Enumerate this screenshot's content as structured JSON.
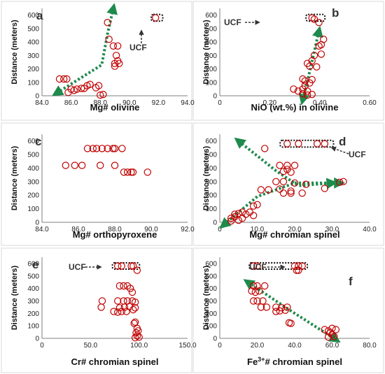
{
  "colors": {
    "marker": "#c00000",
    "trend": "#1e8a4c",
    "frame": "#d9d9d9",
    "axis": "#7f7f7f"
  },
  "chart_data": [
    {
      "id": "a",
      "type": "scatter",
      "panel_label": "a",
      "xlabel": "Mg# olivine",
      "ylabel": "Distance (meters)",
      "xlim": [
        84,
        94
      ],
      "ylim": [
        0,
        650
      ],
      "xticks": [
        "84.0",
        "86.0",
        "88.0",
        "90.0",
        "92.0",
        "94.0"
      ],
      "yticks": [
        "0",
        "100",
        "200",
        "300",
        "400",
        "500",
        "600"
      ],
      "ucf_label": "UCF",
      "points": [
        [
          85.2,
          125
        ],
        [
          85.5,
          125
        ],
        [
          85.7,
          125
        ],
        [
          85.8,
          25
        ],
        [
          86.0,
          50
        ],
        [
          86.2,
          40
        ],
        [
          86.4,
          50
        ],
        [
          86.7,
          55
        ],
        [
          86.9,
          55
        ],
        [
          87.1,
          75
        ],
        [
          87.3,
          85
        ],
        [
          87.7,
          60
        ],
        [
          87.9,
          75
        ],
        [
          88.0,
          5
        ],
        [
          88.2,
          10
        ],
        [
          88.5,
          545
        ],
        [
          88.6,
          420
        ],
        [
          88.9,
          370
        ],
        [
          89.0,
          240
        ],
        [
          89.1,
          300
        ],
        [
          89.2,
          260
        ],
        [
          89.3,
          240
        ],
        [
          89.0,
          220
        ],
        [
          89.2,
          370
        ],
        [
          91.8,
          580
        ]
      ],
      "trend_lines": [
        [
          [
            85.0,
            20
          ],
          [
            88.1,
            230
          ],
          [
            88.5,
            460
          ],
          [
            88.9,
            650
          ]
        ]
      ],
      "ucf_box": [
        91.6,
        92.2,
        555,
        605
      ]
    },
    {
      "id": "b",
      "type": "scatter",
      "panel_label": "b",
      "xlabel": "NiO (wt.%) in olivine",
      "ylabel": "Distance (meters)",
      "xlim": [
        0,
        0.65
      ],
      "ylim": [
        0,
        650
      ],
      "xticks": [
        "0",
        "0.20",
        "0.40",
        "0.60"
      ],
      "yticks": [
        "0",
        "100",
        "200",
        "300",
        "400",
        "500",
        "600"
      ],
      "ucf_label": "UCF",
      "points": [
        [
          0.4,
          580
        ],
        [
          0.41,
          570
        ],
        [
          0.43,
          545
        ],
        [
          0.45,
          420
        ],
        [
          0.44,
          380
        ],
        [
          0.43,
          370
        ],
        [
          0.41,
          300
        ],
        [
          0.4,
          260
        ],
        [
          0.38,
          240
        ],
        [
          0.39,
          220
        ],
        [
          0.42,
          215
        ],
        [
          0.4,
          120
        ],
        [
          0.39,
          95
        ],
        [
          0.37,
          75
        ],
        [
          0.36,
          50
        ],
        [
          0.38,
          35
        ],
        [
          0.32,
          50
        ],
        [
          0.34,
          35
        ],
        [
          0.36,
          15
        ],
        [
          0.4,
          10
        ],
        [
          0.38,
          5
        ],
        [
          0.36,
          125
        ],
        [
          0.37,
          110
        ],
        [
          0.44,
          310
        ]
      ],
      "trend_lines": [
        [
          [
            0.43,
            480
          ],
          [
            0.39,
            180
          ],
          [
            0.36,
            -30
          ]
        ]
      ],
      "ucf_box": [
        0.38,
        0.45,
        555,
        605
      ]
    },
    {
      "id": "c",
      "type": "scatter",
      "panel_label": "c",
      "xlabel": "Mg# orthopyroxene",
      "ylabel": "Distance (meters)",
      "xlim": [
        84,
        92
      ],
      "ylim": [
        0,
        650
      ],
      "xticks": [
        "84.0",
        "86.0",
        "88.0",
        "90.0",
        "92.0"
      ],
      "yticks": [
        "0",
        "100",
        "200",
        "300",
        "400",
        "500",
        "600"
      ],
      "points": [
        [
          86.5,
          545
        ],
        [
          86.8,
          545
        ],
        [
          87.0,
          545
        ],
        [
          87.3,
          545
        ],
        [
          87.6,
          545
        ],
        [
          88.0,
          545
        ],
        [
          88.4,
          545
        ],
        [
          87.9,
          545
        ],
        [
          85.3,
          420
        ],
        [
          85.8,
          420
        ],
        [
          86.2,
          420
        ],
        [
          87.2,
          420
        ],
        [
          88.0,
          420
        ],
        [
          88.5,
          370
        ],
        [
          88.7,
          370
        ],
        [
          88.9,
          370
        ],
        [
          89.0,
          370
        ],
        [
          89.8,
          370
        ]
      ]
    },
    {
      "id": "d",
      "type": "scatter",
      "panel_label": "d",
      "xlabel": "Mg# chromian spinel",
      "ylabel": "Distance (meters)",
      "xlim": [
        0,
        40
      ],
      "ylim": [
        0,
        650
      ],
      "xticks": [
        "0",
        "10.0",
        "20.0",
        "30.0",
        "40.0"
      ],
      "yticks": [
        "0",
        "100",
        "200",
        "300",
        "400",
        "500",
        "600"
      ],
      "ucf_label": "UCF",
      "points": [
        [
          18,
          580
        ],
        [
          21,
          580
        ],
        [
          26,
          580
        ],
        [
          28,
          580
        ],
        [
          12,
          545
        ],
        [
          16,
          420
        ],
        [
          18,
          420
        ],
        [
          20,
          420
        ],
        [
          17,
          375
        ],
        [
          18,
          390
        ],
        [
          19,
          370
        ],
        [
          15,
          300
        ],
        [
          17,
          300
        ],
        [
          20,
          290
        ],
        [
          23,
          280
        ],
        [
          28,
          250
        ],
        [
          32,
          295
        ],
        [
          33,
          300
        ],
        [
          16,
          245
        ],
        [
          19,
          230
        ],
        [
          11,
          240
        ],
        [
          13,
          240
        ],
        [
          17,
          215
        ],
        [
          19,
          215
        ],
        [
          22,
          215
        ],
        [
          10,
          130
        ],
        [
          9,
          120
        ],
        [
          8,
          75
        ],
        [
          7,
          60
        ],
        [
          6,
          75
        ],
        [
          5,
          65
        ],
        [
          4,
          40
        ],
        [
          3,
          30
        ],
        [
          4,
          60
        ],
        [
          6,
          30
        ],
        [
          9,
          50
        ],
        [
          5,
          15
        ],
        [
          3,
          10
        ]
      ],
      "trend_lines": [
        [
          [
            1,
            -20
          ],
          [
            10,
            190
          ],
          [
            20,
            290
          ],
          [
            32,
            290
          ]
        ],
        [
          [
            5,
            600
          ],
          [
            15,
            380
          ],
          [
            21,
            270
          ],
          [
            30,
            290
          ]
        ]
      ],
      "ucf_box": [
        16.5,
        30,
        555,
        605
      ]
    },
    {
      "id": "e",
      "type": "scatter",
      "panel_label": "e",
      "xlabel": "Cr# chromian spinel",
      "ylabel": "Distance (meters)",
      "xlim": [
        0,
        150
      ],
      "ylim": [
        0,
        650
      ],
      "xticks": [
        "0",
        "50.0",
        "100.0",
        "150.0"
      ],
      "yticks": [
        "0",
        "100",
        "200",
        "300",
        "400",
        "500",
        "600"
      ],
      "ucf_label": "UCF",
      "points": [
        [
          78,
          580
        ],
        [
          82,
          580
        ],
        [
          92,
          580
        ],
        [
          94,
          580
        ],
        [
          98,
          545
        ],
        [
          80,
          420
        ],
        [
          84,
          420
        ],
        [
          88,
          420
        ],
        [
          91,
          400
        ],
        [
          93,
          370
        ],
        [
          78,
          300
        ],
        [
          84,
          300
        ],
        [
          88,
          300
        ],
        [
          93,
          300
        ],
        [
          96,
          290
        ],
        [
          62,
          300
        ],
        [
          61,
          250
        ],
        [
          80,
          245
        ],
        [
          85,
          250
        ],
        [
          90,
          255
        ],
        [
          96,
          245
        ],
        [
          74,
          215
        ],
        [
          78,
          210
        ],
        [
          82,
          215
        ],
        [
          87,
          215
        ],
        [
          94,
          230
        ],
        [
          96,
          130
        ],
        [
          95,
          120
        ],
        [
          98,
          80
        ],
        [
          99,
          60
        ],
        [
          97,
          45
        ],
        [
          98,
          20
        ],
        [
          100,
          10
        ],
        [
          96,
          5
        ]
      ],
      "ucf_box": [
        74,
        99,
        555,
        605
      ]
    },
    {
      "id": "f",
      "type": "scatter",
      "panel_label": "f",
      "xlabel": "Fe3+# chromian spinel",
      "ylabel": "Distance (meters)",
      "xlim": [
        0,
        80
      ],
      "ylim": [
        0,
        650
      ],
      "xticks": [
        "0",
        "20.0",
        "40.0",
        "60.0",
        "80.0"
      ],
      "yticks": [
        "0",
        "100",
        "200",
        "300",
        "400",
        "500",
        "600"
      ],
      "ucf_label": "UCF",
      "points": [
        [
          18,
          580
        ],
        [
          20,
          580
        ],
        [
          40,
          580
        ],
        [
          42,
          580
        ],
        [
          44,
          580
        ],
        [
          41,
          545
        ],
        [
          42,
          545
        ],
        [
          18,
          420
        ],
        [
          20,
          420
        ],
        [
          24,
          420
        ],
        [
          17,
          380
        ],
        [
          19,
          370
        ],
        [
          21,
          380
        ],
        [
          18,
          300
        ],
        [
          20,
          300
        ],
        [
          23,
          300
        ],
        [
          22,
          250
        ],
        [
          25,
          250
        ],
        [
          30,
          250
        ],
        [
          33,
          245
        ],
        [
          36,
          250
        ],
        [
          30,
          215
        ],
        [
          32,
          220
        ],
        [
          35,
          225
        ],
        [
          37,
          125
        ],
        [
          38,
          120
        ],
        [
          56,
          70
        ],
        [
          58,
          60
        ],
        [
          60,
          80
        ],
        [
          62,
          70
        ],
        [
          59,
          45
        ],
        [
          60,
          30
        ],
        [
          61,
          15
        ],
        [
          58,
          10
        ]
      ],
      "trend_lines": [
        [
          [
            15,
            450
          ],
          [
            38,
            220
          ],
          [
            62,
            -10
          ]
        ]
      ],
      "ucf_box": [
        16.5,
        46,
        555,
        605
      ]
    }
  ]
}
